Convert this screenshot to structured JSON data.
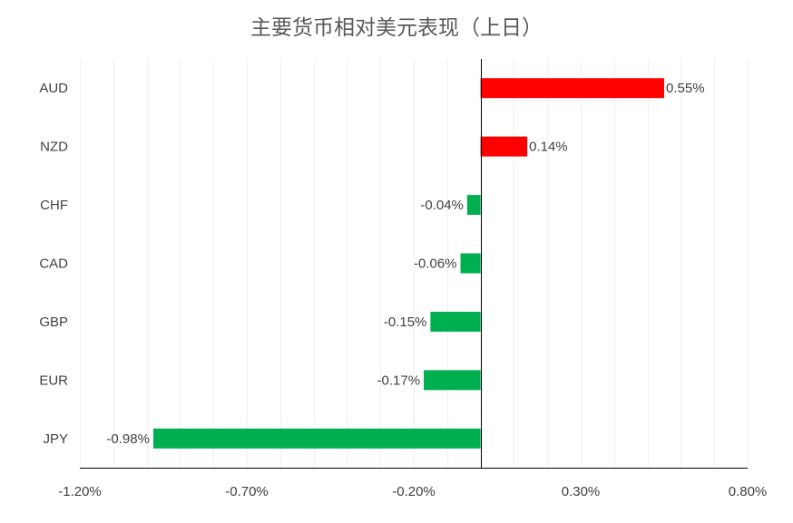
{
  "chart_data": {
    "type": "bar",
    "orientation": "horizontal",
    "title": "主要货币相对美元表现（上日）",
    "categories": [
      "AUD",
      "NZD",
      "CHF",
      "CAD",
      "GBP",
      "EUR",
      "JPY"
    ],
    "values": [
      0.55,
      0.14,
      -0.04,
      -0.06,
      -0.15,
      -0.17,
      -0.98
    ],
    "value_labels": [
      "0.55%",
      "0.14%",
      "-0.04%",
      "-0.06%",
      "-0.15%",
      "-0.17%",
      "-0.98%"
    ],
    "xlim": [
      -1.2,
      0.8
    ],
    "x_ticks": [
      -1.2,
      -0.7,
      -0.2,
      0.3,
      0.8
    ],
    "x_tick_labels": [
      "-1.20%",
      "-0.70%",
      "-0.20%",
      "0.30%",
      "0.80%"
    ],
    "minor_gridline_step": 0.1,
    "grid": true,
    "colors": {
      "positive": "#ff0000",
      "negative": "#00b050",
      "grid": "#f0f0f0",
      "axis": "#000000"
    }
  }
}
